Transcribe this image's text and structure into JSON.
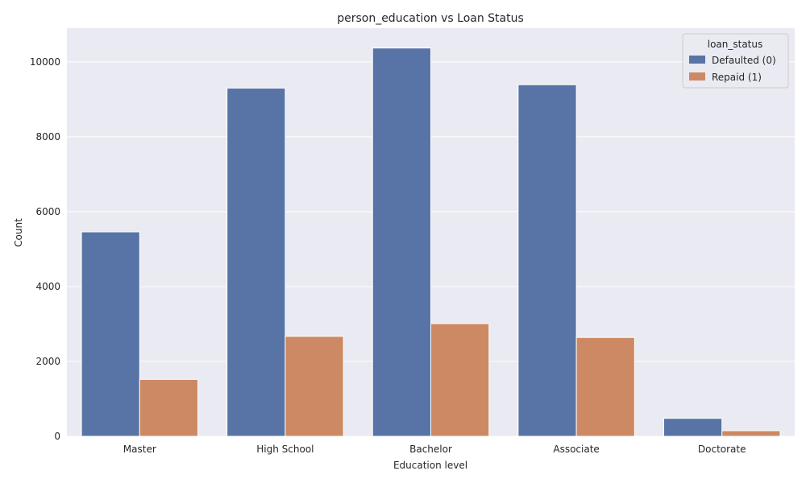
{
  "chart_data": {
    "type": "bar",
    "title": "person_education vs Loan Status",
    "xlabel": "Education level",
    "ylabel": "Count",
    "categories": [
      "Master",
      "High School",
      "Bachelor",
      "Associate",
      "Doctorate"
    ],
    "series": [
      {
        "name": "Defaulted (0)",
        "color": "#5874a6",
        "values": [
          5460,
          9300,
          10370,
          9390,
          480
        ]
      },
      {
        "name": "Repaid (1)",
        "color": "#cc8963",
        "values": [
          1520,
          2670,
          3010,
          2640,
          150
        ]
      }
    ],
    "ylim": [
      0,
      10900
    ],
    "yticks": [
      0,
      2000,
      4000,
      6000,
      8000,
      10000
    ],
    "grid": true,
    "legend": {
      "title": "loan_status",
      "placement": "top-right"
    },
    "background": "#eaeaf2",
    "grid_color": "#ffffff"
  }
}
